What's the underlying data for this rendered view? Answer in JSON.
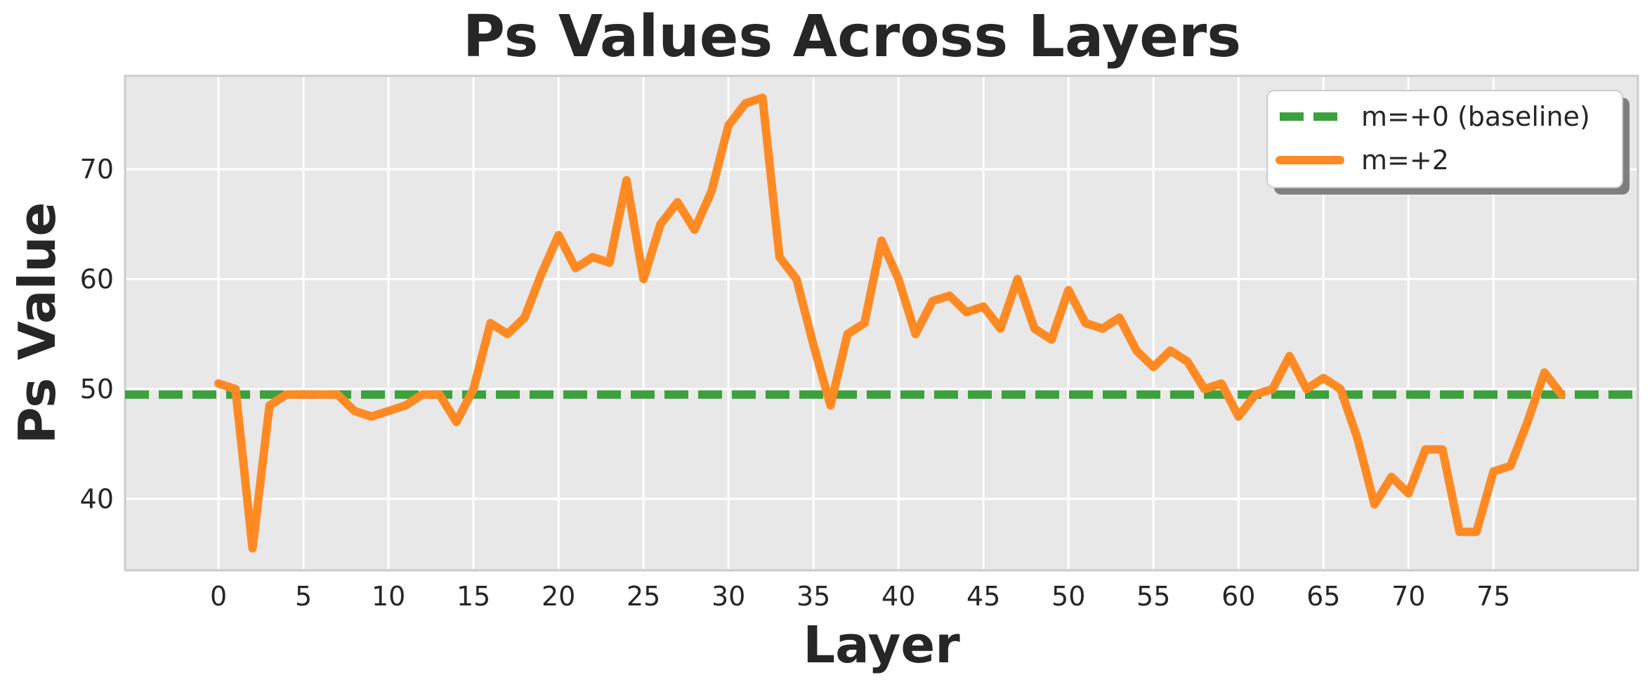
{
  "chart_data": {
    "type": "line",
    "title": "Ps Values Across Layers",
    "xlabel": "Layer",
    "ylabel": "Ps Value",
    "xlim": [
      -5.5,
      83.5
    ],
    "ylim": [
      33.5,
      78.5
    ],
    "xticks": [
      0,
      5,
      10,
      15,
      20,
      25,
      30,
      35,
      40,
      45,
      50,
      55,
      60,
      65,
      70,
      75
    ],
    "yticks": [
      40,
      50,
      60,
      70
    ],
    "grid": true,
    "legend_position": "top-right",
    "series": [
      {
        "name": "m=+0 (baseline)",
        "style": "dashed",
        "color": "#3ca03c",
        "x": [
          -5.5,
          83.5
        ],
        "y": [
          49.5,
          49.5
        ]
      },
      {
        "name": "m=+2",
        "style": "solid",
        "color": "#ff8a24",
        "x": [
          0,
          1,
          2,
          3,
          4,
          5,
          6,
          7,
          8,
          9,
          10,
          11,
          12,
          13,
          14,
          15,
          16,
          17,
          18,
          19,
          20,
          21,
          22,
          23,
          24,
          25,
          26,
          27,
          28,
          29,
          30,
          31,
          32,
          33,
          34,
          35,
          36,
          37,
          38,
          39,
          40,
          41,
          42,
          43,
          44,
          45,
          46,
          47,
          48,
          49,
          50,
          51,
          52,
          53,
          54,
          55,
          56,
          57,
          58,
          59,
          60,
          61,
          62,
          63,
          64,
          65,
          66,
          67,
          68,
          69,
          70,
          71,
          72,
          73,
          74,
          75,
          76,
          77,
          78,
          79
        ],
        "y": [
          50.5,
          50.0,
          35.5,
          48.5,
          49.5,
          49.5,
          49.5,
          49.5,
          48.0,
          47.5,
          48.0,
          48.5,
          49.5,
          49.5,
          47.0,
          50.0,
          56.0,
          55.0,
          56.5,
          60.5,
          64.0,
          61.0,
          62.0,
          61.5,
          69.0,
          60.0,
          65.0,
          67.0,
          64.5,
          68.0,
          74.0,
          76.0,
          76.5,
          62.0,
          60.0,
          54.0,
          48.5,
          55.0,
          56.0,
          63.5,
          60.0,
          55.0,
          58.0,
          58.5,
          57.0,
          57.5,
          55.5,
          60.0,
          55.5,
          54.5,
          59.0,
          56.0,
          55.5,
          56.5,
          53.5,
          52.0,
          53.5,
          52.5,
          50.0,
          50.5,
          47.5,
          49.5,
          50.0,
          53.0,
          50.0,
          51.0,
          50.0,
          45.5,
          39.5,
          42.0,
          40.5,
          44.5,
          44.5,
          37.0,
          37.0,
          42.5,
          43.0,
          47.0,
          51.5,
          49.5
        ]
      }
    ]
  }
}
